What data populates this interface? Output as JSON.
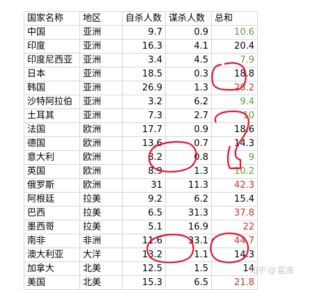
{
  "columns": [
    "国家名称",
    "地区",
    "自杀人数",
    "谋杀人数",
    "总和"
  ],
  "rows": [
    {
      "country": "中国",
      "region": "亚洲",
      "suicides": "9.7",
      "homicides": "0.9",
      "total": "10.6",
      "total_color": "#5a9e3a"
    },
    {
      "country": "印度",
      "region": "亚洲",
      "suicides": "16.3",
      "homicides": "4.1",
      "total": "20.4",
      "total_color": "#000000"
    },
    {
      "country": "印度尼西亚",
      "region": "亚洲",
      "suicides": "3.4",
      "homicides": "4.5",
      "total": "7.9",
      "total_color": "#5a9e3a"
    },
    {
      "country": "日本",
      "region": "亚洲",
      "suicides": "18.5",
      "homicides": "0.3",
      "total": "18.8",
      "total_color": "#000000"
    },
    {
      "country": "韩国",
      "region": "亚洲",
      "suicides": "26.9",
      "homicides": "1.3",
      "total": "28.2",
      "total_color": "#c0392b"
    },
    {
      "country": "沙特阿拉伯",
      "region": "亚洲",
      "suicides": "3.2",
      "homicides": "6.2",
      "total": "9.4",
      "total_color": "#5a9e3a"
    },
    {
      "country": "土耳其",
      "region": "亚洲",
      "suicides": "7.3",
      "homicides": "2.7",
      "total": "10",
      "total_color": "#5a9e3a"
    },
    {
      "country": "法国",
      "region": "欧洲",
      "suicides": "17.7",
      "homicides": "0.9",
      "total": "18.6",
      "total_color": "#000000"
    },
    {
      "country": "德国",
      "region": "欧洲",
      "suicides": "13.6",
      "homicides": "0.7",
      "total": "14.3",
      "total_color": "#000000"
    },
    {
      "country": "意大利",
      "region": "欧洲",
      "suicides": "8.2",
      "homicides": "0.8",
      "total": "9",
      "total_color": "#5a9e3a"
    },
    {
      "country": "英国",
      "region": "欧洲",
      "suicides": "8.9",
      "homicides": "1.3",
      "total": "10.2",
      "total_color": "#5a9e3a"
    },
    {
      "country": "俄罗斯",
      "region": "欧洲",
      "suicides": "31",
      "homicides": "11.3",
      "total": "42.3",
      "total_color": "#c0392b"
    },
    {
      "country": "阿根廷",
      "region": "拉美",
      "suicides": "9.2",
      "homicides": "6.2",
      "total": "15.4",
      "total_color": "#000000"
    },
    {
      "country": "巴西",
      "region": "拉美",
      "suicides": "6.5",
      "homicides": "31.3",
      "total": "37.8",
      "total_color": "#c0392b"
    },
    {
      "country": "墨西哥",
      "region": "拉美",
      "suicides": "5.1",
      "homicides": "16.9",
      "total": "22",
      "total_color": "#c0392b"
    },
    {
      "country": "南非",
      "region": "非洲",
      "suicides": "11.6",
      "homicides": "33.1",
      "total": "44.7",
      "total_color": "#c0392b"
    },
    {
      "country": "澳大利亚",
      "region": "大洋",
      "suicides": "13.2",
      "homicides": "1.1",
      "total": "14.3",
      "total_color": "#000000"
    },
    {
      "country": "加拿大",
      "region": "北美",
      "suicides": "12.5",
      "homicides": "1.5",
      "total": "14",
      "total_color": "#000000"
    },
    {
      "country": "美国",
      "region": "北美",
      "suicides": "15.3",
      "homicides": "6.5",
      "total": "21.8",
      "total_color": "#c0392b"
    }
  ],
  "watermark": {
    "site": "知乎",
    "at": "@",
    "author": "霍库"
  },
  "annotation_color": "#e8102a"
}
